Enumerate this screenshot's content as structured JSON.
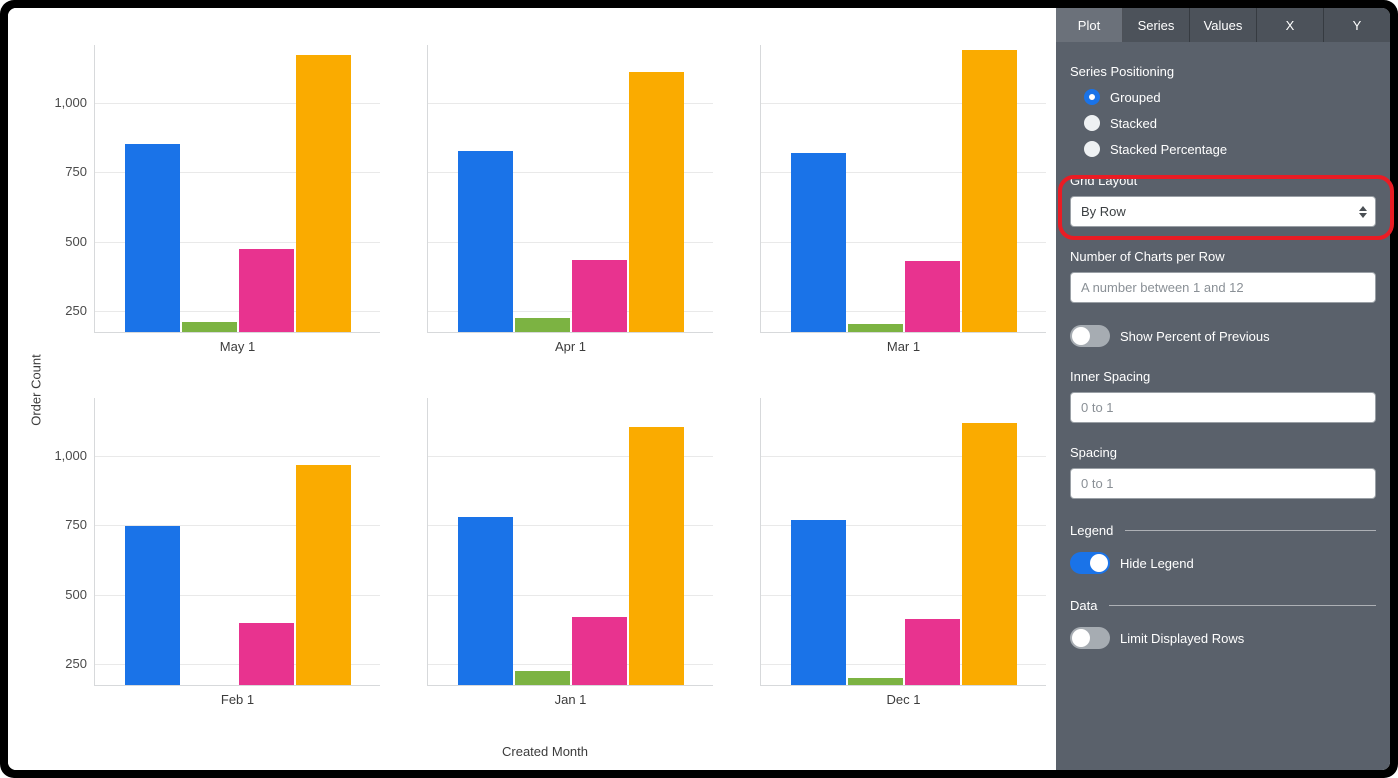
{
  "panel": {
    "tabs": [
      {
        "label": "Plot",
        "active": true
      },
      {
        "label": "Series",
        "active": false
      },
      {
        "label": "Values",
        "active": false
      },
      {
        "label": "X",
        "active": false
      },
      {
        "label": "Y",
        "active": false
      }
    ],
    "series_positioning": {
      "label": "Series Positioning",
      "options": [
        {
          "label": "Grouped",
          "selected": true
        },
        {
          "label": "Stacked",
          "selected": false
        },
        {
          "label": "Stacked Percentage",
          "selected": false
        }
      ]
    },
    "grid_layout": {
      "label": "Grid Layout",
      "value": "By Row"
    },
    "charts_per_row": {
      "label": "Number of Charts per Row",
      "placeholder": "A number between 1 and 12",
      "value": ""
    },
    "show_percent_of_previous": {
      "label": "Show Percent of Previous",
      "on": false
    },
    "inner_spacing": {
      "label": "Inner Spacing",
      "placeholder": "0 to 1",
      "value": ""
    },
    "spacing": {
      "label": "Spacing",
      "placeholder": "0 to 1",
      "value": ""
    },
    "legend_section": {
      "label": "Legend",
      "hide_legend": {
        "label": "Hide Legend",
        "on": true
      }
    },
    "data_section": {
      "label": "Data",
      "limit_rows": {
        "label": "Limit Displayed Rows",
        "on": false
      }
    }
  },
  "annotation": {
    "type": "highlight-box",
    "color": "#ea1c24",
    "target": "Grid Layout select"
  },
  "chart_data": {
    "type": "bar",
    "layout": "small-multiples grid, 2 rows x 3 columns",
    "title": "",
    "xlabel": "Created Month",
    "ylabel": "Order Count",
    "facets": [
      "May 1",
      "Apr 1",
      "Mar 1",
      "Feb 1",
      "Jan 1",
      "Dec 1"
    ],
    "series": [
      {
        "name": "blue",
        "color": "#1A73E8",
        "values": [
          850,
          825,
          815,
          745,
          775,
          765
        ]
      },
      {
        "name": "green",
        "color": "#7CB342",
        "values": [
          205,
          220,
          200,
          170,
          220,
          195
        ]
      },
      {
        "name": "pink",
        "color": "#E8338F",
        "values": [
          470,
          430,
          425,
          395,
          415,
          410
        ]
      },
      {
        "name": "orange",
        "color": "#FAAB00",
        "values": [
          1170,
          1110,
          1190,
          965,
          1100,
          1115
        ]
      }
    ],
    "y_ticks": [
      250,
      500,
      750,
      1000
    ],
    "y_tick_labels": [
      "250",
      "500",
      "750",
      "1,000"
    ],
    "y_axis_range": [
      170,
      1210
    ],
    "grid": true,
    "legend": "hidden"
  }
}
